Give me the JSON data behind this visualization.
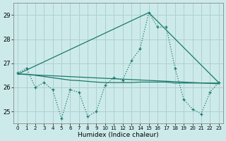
{
  "xlabel": "Humidex (Indice chaleur)",
  "xlim": [
    -0.5,
    23.5
  ],
  "ylim": [
    24.5,
    29.5
  ],
  "yticks": [
    25,
    26,
    27,
    28,
    29
  ],
  "xticks": [
    0,
    1,
    2,
    3,
    4,
    5,
    6,
    7,
    8,
    9,
    10,
    11,
    12,
    13,
    14,
    15,
    16,
    17,
    18,
    19,
    20,
    21,
    22,
    23
  ],
  "bg_color": "#cdeaea",
  "grid_color": "#aed0d0",
  "line_color": "#1a7a6a",
  "series0_x": [
    0,
    1,
    2,
    3,
    4,
    5,
    6,
    7,
    8,
    9,
    10,
    11,
    12,
    13,
    14,
    15,
    16,
    17,
    18,
    19,
    20,
    21,
    22,
    23
  ],
  "series0_y": [
    26.6,
    26.8,
    26.0,
    26.2,
    25.9,
    24.7,
    25.9,
    25.8,
    24.8,
    25.0,
    26.1,
    26.4,
    26.3,
    27.1,
    27.6,
    29.1,
    28.5,
    28.5,
    26.8,
    25.5,
    25.1,
    24.9,
    25.8,
    26.2
  ],
  "series1_x": [
    0,
    23
  ],
  "series1_y": [
    26.55,
    26.15
  ],
  "series2_x": [
    0,
    15,
    23
  ],
  "series2_y": [
    26.55,
    29.1,
    26.2
  ],
  "series3_x": [
    0,
    1,
    2,
    3,
    4,
    5,
    6,
    7,
    8,
    9,
    10,
    11,
    12,
    13,
    14,
    15,
    16,
    17,
    18,
    19,
    20,
    21,
    22,
    23
  ],
  "series3_y": [
    26.55,
    26.55,
    26.5,
    26.45,
    26.4,
    26.35,
    26.3,
    26.28,
    26.25,
    26.22,
    26.2,
    26.2,
    26.2,
    26.2,
    26.22,
    26.22,
    26.22,
    26.22,
    26.18,
    26.18,
    26.18,
    26.18,
    26.18,
    26.18
  ]
}
